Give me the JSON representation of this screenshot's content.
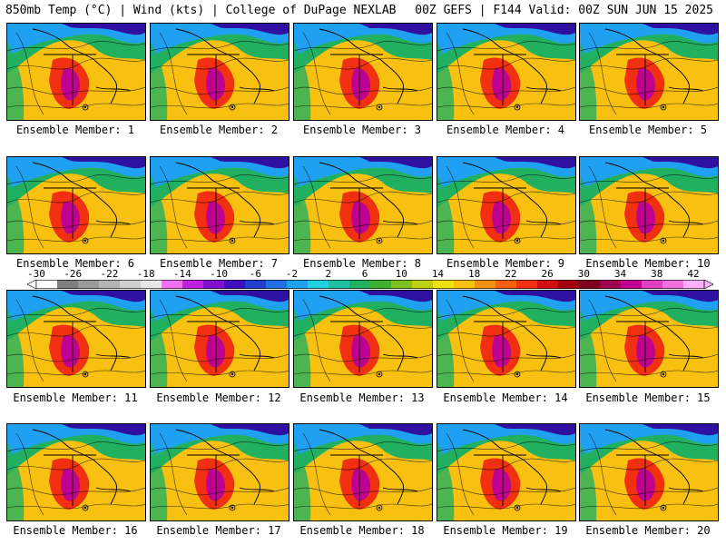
{
  "header": {
    "left": "850mb Temp (°C) | Wind (kts) | College of DuPage NEXLAB",
    "right": "00Z GEFS | F144 Valid: 00Z SUN JUN 15 2025"
  },
  "panels": [
    {
      "label": "Ensemble Member: 1"
    },
    {
      "label": "Ensemble Member: 2"
    },
    {
      "label": "Ensemble Member: 3"
    },
    {
      "label": "Ensemble Member: 4"
    },
    {
      "label": "Ensemble Member: 5"
    },
    {
      "label": "Ensemble Member: 6"
    },
    {
      "label": "Ensemble Member: 7"
    },
    {
      "label": "Ensemble Member: 8"
    },
    {
      "label": "Ensemble Member: 9"
    },
    {
      "label": "Ensemble Member: 10"
    },
    {
      "label": "Ensemble Member: 11"
    },
    {
      "label": "Ensemble Member: 12"
    },
    {
      "label": "Ensemble Member: 13"
    },
    {
      "label": "Ensemble Member: 14"
    },
    {
      "label": "Ensemble Member: 15"
    },
    {
      "label": "Ensemble Member: 16"
    },
    {
      "label": "Ensemble Member: 17"
    },
    {
      "label": "Ensemble Member: 18"
    },
    {
      "label": "Ensemble Member: 19"
    },
    {
      "label": "Ensemble Member: 20"
    }
  ],
  "colorbar": {
    "ticks": [
      "-30",
      "-26",
      "-22",
      "-18",
      "-14",
      "-10",
      "-6",
      "-2",
      "2",
      "6",
      "10",
      "14",
      "18",
      "22",
      "26",
      "30",
      "34",
      "38",
      "42"
    ],
    "colors": [
      "#ffffff",
      "#7f7f7f",
      "#9a9a9a",
      "#b4b4b4",
      "#d0d0d0",
      "#e8e8e8",
      "#f070f0",
      "#c020e0",
      "#8010d0",
      "#4010c0",
      "#2040d0",
      "#2070e8",
      "#20a0f0",
      "#20d0e0",
      "#20c0a0",
      "#20b060",
      "#40b030",
      "#80c020",
      "#c0d010",
      "#f0e010",
      "#f8c010",
      "#f89010",
      "#f86010",
      "#f03010",
      "#d01010",
      "#a00010",
      "#800020",
      "#a00050",
      "#c00090",
      "#e040c0",
      "#f070e0",
      "#ffb0ff"
    ]
  },
  "map_colors": {
    "cold": "#3010a0",
    "cool": "#20a0f0",
    "mild": "#20b060",
    "warm": "#f8c010",
    "hot": "#f03010",
    "extreme": "#c00090"
  }
}
